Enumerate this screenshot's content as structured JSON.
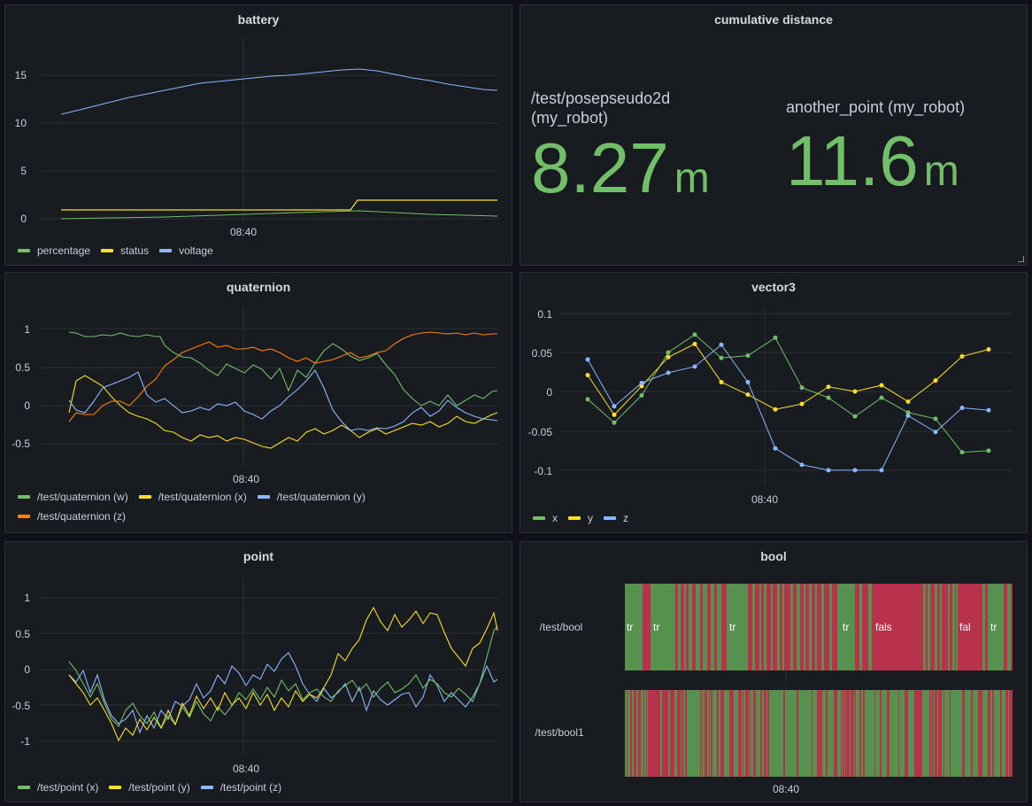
{
  "colors": {
    "green": "#73bf69",
    "yellow": "#fade2a",
    "blue": "#8ab8ff",
    "orange": "#ff7f0e",
    "red": "#b7324a",
    "timeline_green": "#56924d"
  },
  "panels": {
    "battery": {
      "title": "battery",
      "y_ticks": [
        "15",
        "10",
        "5",
        "0"
      ],
      "x_label": "08:40",
      "legend": [
        {
          "name": "percentage",
          "color": "#73bf69"
        },
        {
          "name": "status",
          "color": "#fade2a"
        },
        {
          "name": "voltage",
          "color": "#8ab8ff"
        }
      ]
    },
    "cumulative_distance": {
      "title": "cumulative distance",
      "stats": [
        {
          "label": "/test/posepseudo2d (my_robot)",
          "value": "8.27",
          "unit": "m"
        },
        {
          "label": "another_point (my_robot)",
          "value": "11.6",
          "unit": "m"
        }
      ]
    },
    "quaternion": {
      "title": "quaternion",
      "y_ticks": [
        "1",
        "0.5",
        "0",
        "-0.5"
      ],
      "x_label": "08:40",
      "legend": [
        {
          "name": "/test/quaternion (w)",
          "color": "#73bf69"
        },
        {
          "name": "/test/quaternion (x)",
          "color": "#fade2a"
        },
        {
          "name": "/test/quaternion (y)",
          "color": "#8ab8ff"
        },
        {
          "name": "/test/quaternion (z)",
          "color": "#ff7f0e"
        }
      ]
    },
    "vector3": {
      "title": "vector3",
      "y_ticks": [
        "0.1",
        "0.05",
        "0",
        "-0.05",
        "-0.1"
      ],
      "x_label": "08:40",
      "legend": [
        {
          "name": "x",
          "color": "#73bf69"
        },
        {
          "name": "y",
          "color": "#fade2a"
        },
        {
          "name": "z",
          "color": "#8ab8ff"
        }
      ]
    },
    "point": {
      "title": "point",
      "y_ticks": [
        "1",
        "0.5",
        "0",
        "-0.5",
        "-1"
      ],
      "x_label": "08:40",
      "legend": [
        {
          "name": "/test/point (x)",
          "color": "#73bf69"
        },
        {
          "name": "/test/point (y)",
          "color": "#fade2a"
        },
        {
          "name": "/test/point (z)",
          "color": "#8ab8ff"
        }
      ]
    },
    "bool": {
      "title": "bool",
      "rows": [
        {
          "name": "/test/bool",
          "labels": [
            "tr",
            "tr",
            "tr",
            "tr",
            "fals",
            "fal",
            "tr"
          ]
        },
        {
          "name": "/test/bool1"
        }
      ],
      "x_label": "08:40"
    }
  },
  "chart_data": [
    {
      "type": "line",
      "title": "battery",
      "x_label": "08:40",
      "ylim": [
        0,
        18
      ],
      "series": [
        {
          "name": "voltage",
          "values": [
            11,
            11.4,
            12,
            12.6,
            13.1,
            13.6,
            14,
            14.3,
            14.8,
            15.2,
            15.5,
            15.6,
            15.3,
            14.6,
            14,
            13.5
          ]
        },
        {
          "name": "status",
          "values": [
            1,
            1,
            1,
            1,
            1,
            1,
            1,
            1,
            1,
            1,
            1,
            2,
            2,
            2,
            2,
            2
          ]
        },
        {
          "name": "percentage",
          "values": [
            0,
            0.1,
            0.2,
            0.3,
            0.4,
            0.5,
            0.6,
            0.7,
            0.8,
            0.9,
            0.9,
            0.8,
            0.6,
            0.5,
            0.4,
            0.3
          ]
        }
      ]
    },
    {
      "type": "line",
      "title": "quaternion",
      "x_label": "08:40",
      "ylim": [
        -0.7,
        1.2
      ],
      "series": [
        {
          "name": "/test/quaternion (w)",
          "values": [
            0.97,
            0.92,
            0.93,
            0.92,
            0.88,
            0.65,
            0.48,
            0.55,
            0.45,
            0.4,
            0.5,
            0.72,
            0.55,
            0.6,
            0.48,
            0.3,
            0.15,
            0.05,
            0.1,
            0.18
          ]
        },
        {
          "name": "/test/quaternion (x)",
          "values": [
            -0.05,
            0.35,
            0.2,
            -0.05,
            -0.15,
            -0.35,
            -0.45,
            -0.42,
            -0.48,
            -0.52,
            -0.4,
            -0.35,
            -0.42,
            -0.35,
            -0.28,
            -0.3,
            -0.25,
            -0.2,
            -0.22,
            -0.15
          ]
        },
        {
          "name": "/test/quaternion (y)",
          "values": [
            -0.1,
            0,
            0.2,
            0.35,
            0.4,
            0.1,
            -0.1,
            -0.05,
            0.1,
            0.25,
            0.45,
            -0.1,
            -0.3,
            -0.25,
            -0.15,
            -0.1,
            -0.05,
            -0.1,
            -0.15,
            -0.2
          ]
        },
        {
          "name": "/test/quaternion (z)",
          "values": [
            -0.2,
            -0.05,
            0.05,
            0.05,
            0.35,
            0.62,
            0.85,
            0.82,
            0.7,
            0.6,
            0.75,
            0.62,
            0.6,
            0.78,
            0.95,
            0.96,
            0.95,
            0.97,
            0.95,
            0.96
          ]
        }
      ]
    },
    {
      "type": "line",
      "title": "vector3",
      "x_label": "08:40",
      "ylim": [
        -0.125,
        0.125
      ],
      "series": [
        {
          "name": "x",
          "values": [
            -0.01,
            -0.04,
            -0.005,
            0.05,
            0.073,
            0.043,
            0.046,
            0.069,
            0.005,
            -0.008,
            -0.032,
            -0.008,
            -0.027,
            -0.035,
            -0.078,
            -0.076
          ]
        },
        {
          "name": "y",
          "values": [
            0.021,
            -0.03,
            0.007,
            0.044,
            0.061,
            0.012,
            -0.004,
            -0.023,
            -0.016,
            0.006,
            0,
            0.008,
            -0.013,
            0.014,
            0.045,
            0.054
          ]
        },
        {
          "name": "z",
          "values": [
            0.041,
            -0.019,
            0.011,
            0.024,
            0.032,
            0.06,
            0.012,
            -0.073,
            -0.094,
            -0.101,
            -0.101,
            -0.101,
            -0.031,
            -0.052,
            -0.021,
            -0.024
          ]
        }
      ]
    },
    {
      "type": "line",
      "title": "point",
      "x_label": "08:40",
      "ylim": [
        -1.1,
        1.35
      ],
      "series": [
        {
          "name": "/test/point (x)",
          "values": [
            0.1,
            -0.4,
            -0.8,
            -0.6,
            -0.7,
            -0.9,
            -0.6,
            -0.5,
            -0.4,
            -0.3,
            -0.5,
            -0.2,
            -0.4,
            -0.3,
            -0.2,
            -0.3,
            -0.4,
            -0.1,
            -0.3,
            0.6
          ]
        },
        {
          "name": "/test/point (y)",
          "values": [
            -0.1,
            -0.5,
            -0.9,
            -0.9,
            -0.8,
            -0.7,
            -0.6,
            -0.6,
            -0.5,
            -0.4,
            -0.3,
            0.2,
            0.8,
            0.7,
            0.6,
            0.8,
            0.4,
            0.3,
            0.4,
            0.6
          ]
        },
        {
          "name": "/test/point (z)",
          "values": [
            0,
            -0.2,
            -0.6,
            -0.5,
            -0.6,
            -0.4,
            -0.2,
            0,
            -0.3,
            0.2,
            -0.1,
            -0.3,
            -0.4,
            -0.5,
            -0.6,
            -0.4,
            -0.3,
            -0.2,
            -0.3,
            -0.1
          ]
        }
      ]
    }
  ]
}
